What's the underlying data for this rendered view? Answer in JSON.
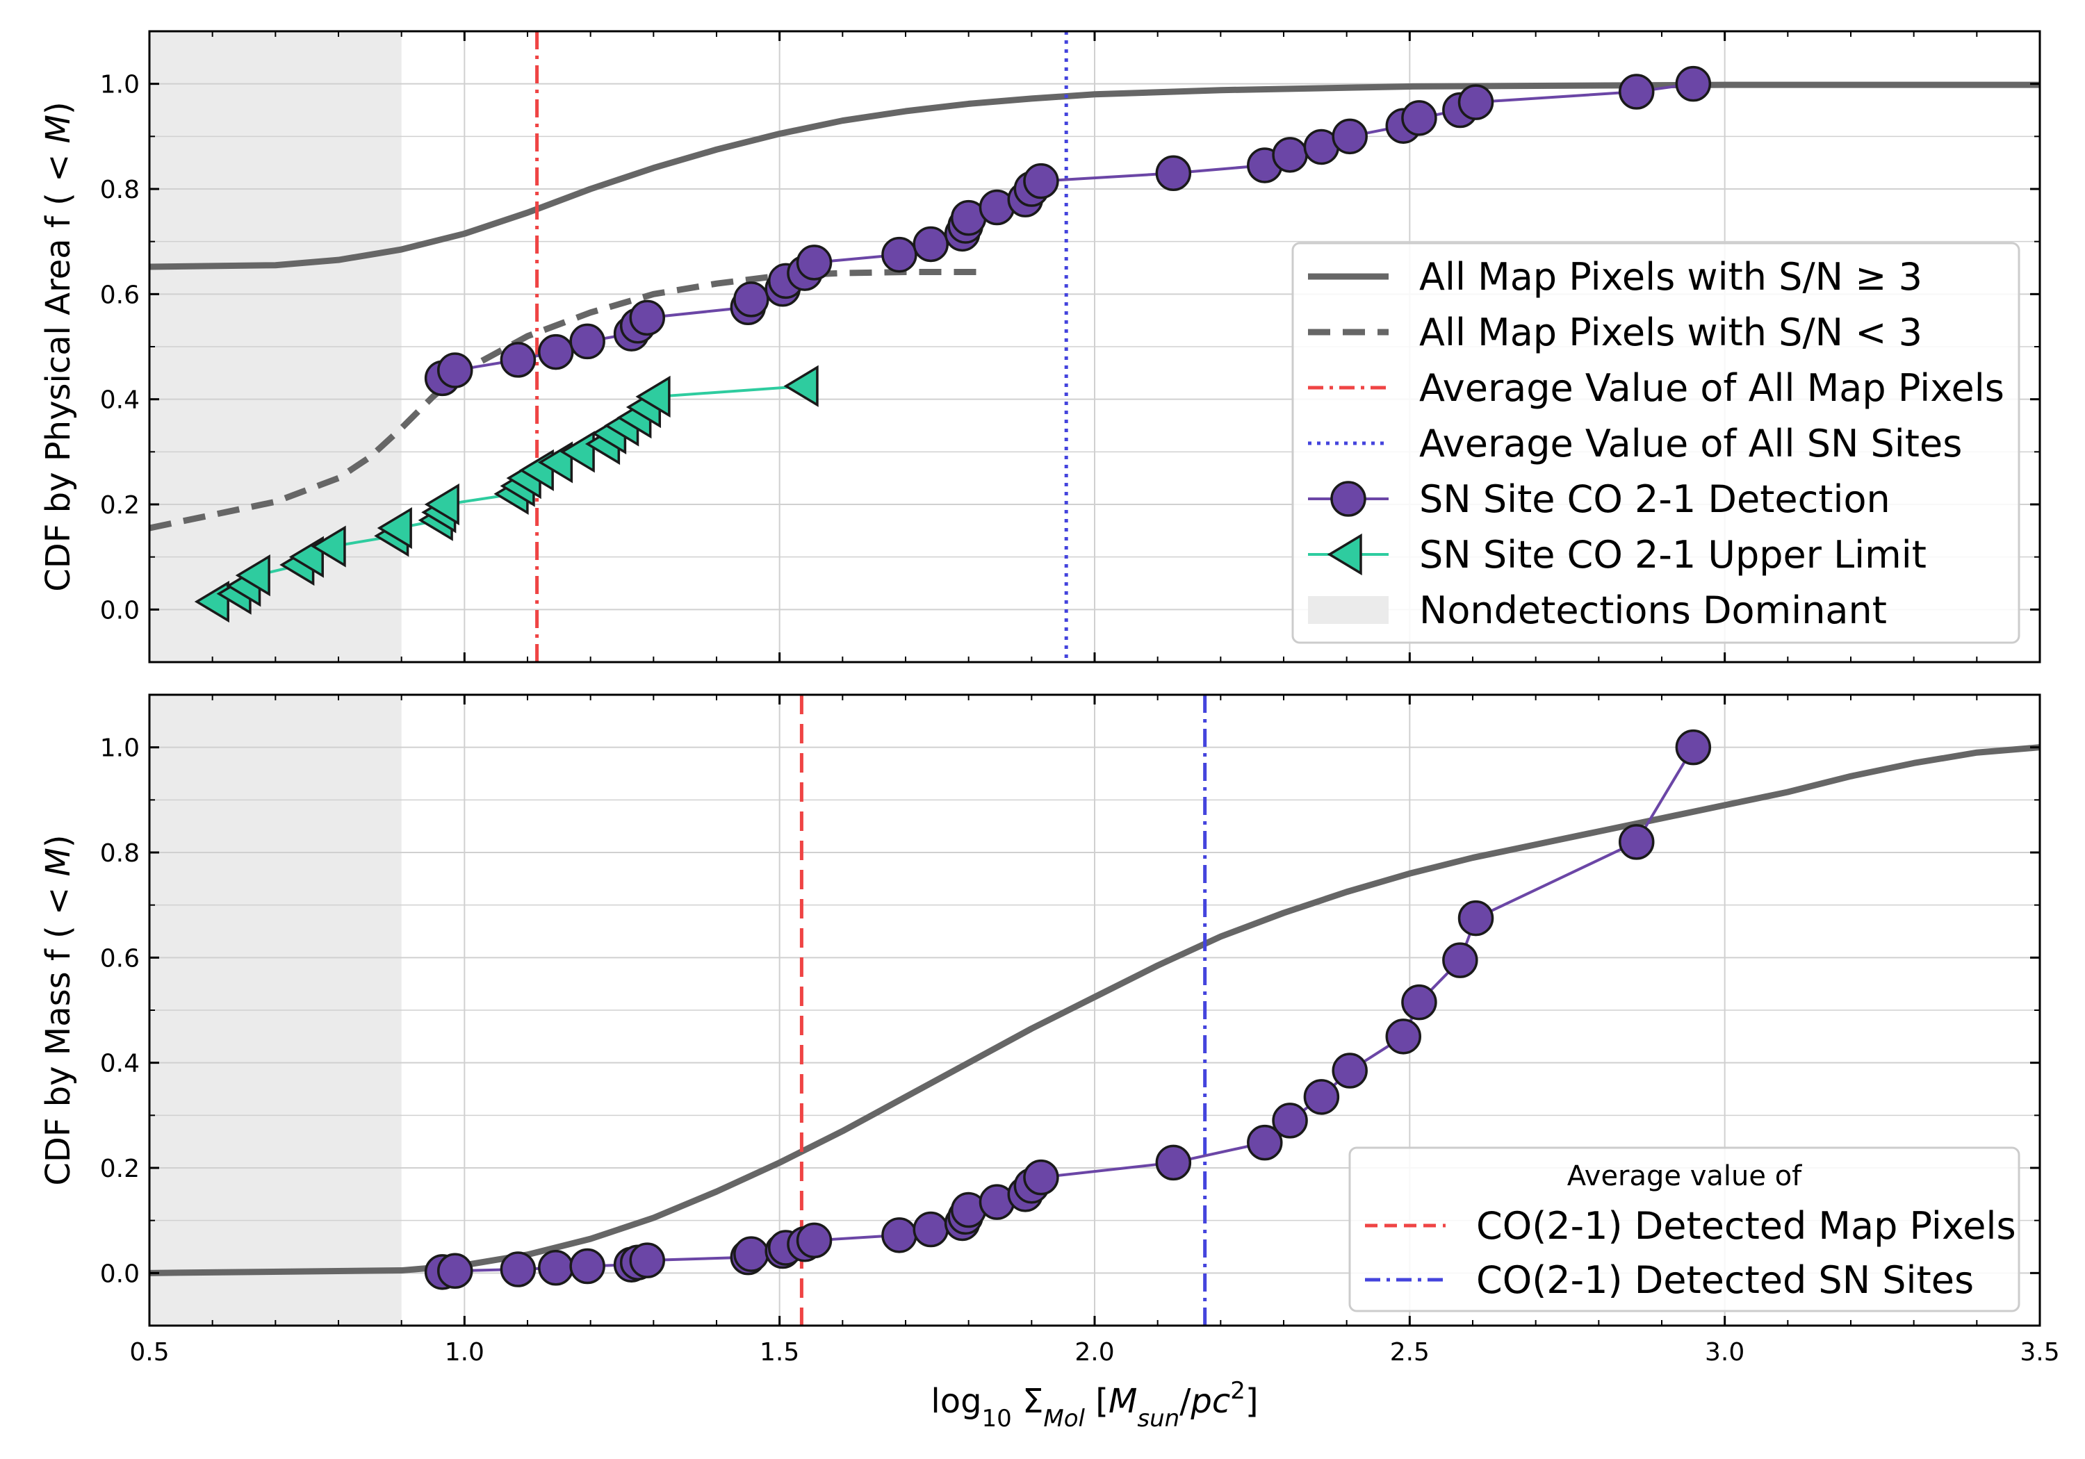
{
  "chart_data": [
    {
      "type": "line",
      "panel": "top",
      "ylabel": "CDF by Physical Area f ( < M)",
      "xlim": [
        0.5,
        3.5
      ],
      "ylim": [
        -0.1,
        1.1
      ],
      "x_ticks": [
        "0.5",
        "1.0",
        "1.5",
        "2.0",
        "2.5",
        "3.0",
        "3.5"
      ],
      "x_tick_values": [
        0.5,
        1.0,
        1.5,
        2.0,
        2.5,
        3.0,
        3.5
      ],
      "y_ticks": [
        "0.0",
        "0.2",
        "0.4",
        "0.6",
        "0.8",
        "1.0"
      ],
      "y_tick_values": [
        0.0,
        0.2,
        0.4,
        0.6,
        0.8,
        1.0
      ],
      "grid": true,
      "legend_position": "right",
      "shaded_region": {
        "label": "Nondetections Dominant",
        "x_range": [
          0.5,
          0.9
        ],
        "color": "#ebebeb"
      },
      "series": [
        {
          "name": "All Map Pixels with S/N ≥ 3",
          "style": "solid",
          "color": "#666666",
          "x": [
            0.5,
            0.7,
            0.8,
            0.9,
            1.0,
            1.1,
            1.2,
            1.3,
            1.4,
            1.5,
            1.6,
            1.7,
            1.8,
            1.9,
            2.0,
            2.2,
            2.5,
            3.0,
            3.5
          ],
          "y": [
            0.652,
            0.655,
            0.665,
            0.685,
            0.715,
            0.755,
            0.8,
            0.84,
            0.875,
            0.905,
            0.93,
            0.948,
            0.962,
            0.972,
            0.98,
            0.988,
            0.995,
            0.998,
            0.998
          ]
        },
        {
          "name": "All Map Pixels with S/N < 3",
          "style": "dashed",
          "color": "#666666",
          "x": [
            0.5,
            0.6,
            0.7,
            0.8,
            0.85,
            0.9,
            0.95,
            1.0,
            1.1,
            1.2,
            1.3,
            1.4,
            1.5,
            1.6,
            1.7,
            1.82
          ],
          "y": [
            0.155,
            0.18,
            0.205,
            0.25,
            0.29,
            0.345,
            0.405,
            0.455,
            0.52,
            0.565,
            0.6,
            0.62,
            0.635,
            0.64,
            0.642,
            0.642
          ]
        },
        {
          "name": "Average Value of All Map Pixels",
          "style": "dashdot",
          "color": "#ef4444",
          "vline": 1.115
        },
        {
          "name": "Average Value of All SN Sites",
          "style": "dotted",
          "color": "#4444dd",
          "vline": 1.955
        },
        {
          "name": "SN Site CO 2-1 Detection",
          "marker": "circle",
          "color": "#6b46a6",
          "x": [
            0.965,
            0.985,
            1.085,
            1.145,
            1.195,
            1.265,
            1.275,
            1.29,
            1.45,
            1.455,
            1.505,
            1.51,
            1.54,
            1.555,
            1.69,
            1.74,
            1.79,
            1.795,
            1.8,
            1.845,
            1.89,
            1.9,
            1.915,
            2.125,
            2.27,
            2.31,
            2.36,
            2.405,
            2.49,
            2.515,
            2.58,
            2.605,
            2.86,
            2.95
          ],
          "y": [
            0.44,
            0.455,
            0.475,
            0.49,
            0.51,
            0.525,
            0.54,
            0.555,
            0.575,
            0.59,
            0.61,
            0.625,
            0.64,
            0.66,
            0.675,
            0.695,
            0.715,
            0.73,
            0.745,
            0.765,
            0.78,
            0.8,
            0.815,
            0.83,
            0.845,
            0.865,
            0.88,
            0.9,
            0.92,
            0.935,
            0.95,
            0.965,
            0.985,
            1.0
          ]
        },
        {
          "name": "SN Site CO 2-1 Upper Limit",
          "marker": "triangle-left",
          "color": "#2ecc9f",
          "x": [
            0.605,
            0.64,
            0.655,
            0.67,
            0.74,
            0.755,
            0.79,
            0.89,
            0.895,
            0.96,
            0.965,
            0.97,
            1.08,
            1.09,
            1.1,
            1.12,
            1.15,
            1.185,
            1.225,
            1.235,
            1.255,
            1.275,
            1.29,
            1.305,
            1.54
          ],
          "y": [
            0.015,
            0.03,
            0.045,
            0.065,
            0.085,
            0.1,
            0.12,
            0.14,
            0.155,
            0.17,
            0.185,
            0.2,
            0.22,
            0.235,
            0.25,
            0.265,
            0.28,
            0.3,
            0.315,
            0.335,
            0.35,
            0.365,
            0.385,
            0.405,
            0.425
          ]
        }
      ]
    },
    {
      "type": "line",
      "panel": "bottom",
      "xlabel": "log10 ΣMol [Msun/pc2]",
      "ylabel": "CDF by Mass f ( < M)",
      "xlim": [
        0.5,
        3.5
      ],
      "ylim": [
        -0.1,
        1.1
      ],
      "x_ticks": [
        "0.5",
        "1.0",
        "1.5",
        "2.0",
        "2.5",
        "3.0",
        "3.5"
      ],
      "x_tick_values": [
        0.5,
        1.0,
        1.5,
        2.0,
        2.5,
        3.0,
        3.5
      ],
      "y_ticks": [
        "0.0",
        "0.2",
        "0.4",
        "0.6",
        "0.8",
        "1.0"
      ],
      "y_tick_values": [
        0.0,
        0.2,
        0.4,
        0.6,
        0.8,
        1.0
      ],
      "grid": true,
      "legend_position": "bottom-right",
      "legend_title": "Average value of",
      "shaded_region": {
        "x_range": [
          0.5,
          0.9
        ],
        "color": "#ebebeb"
      },
      "series": [
        {
          "style": "solid",
          "color": "#666666",
          "x": [
            0.5,
            0.9,
            1.0,
            1.1,
            1.2,
            1.3,
            1.4,
            1.5,
            1.6,
            1.7,
            1.8,
            1.9,
            2.0,
            2.1,
            2.2,
            2.3,
            2.4,
            2.5,
            2.6,
            2.7,
            2.8,
            2.9,
            3.0,
            3.1,
            3.2,
            3.3,
            3.4,
            3.5
          ],
          "y": [
            0.0,
            0.005,
            0.015,
            0.035,
            0.065,
            0.105,
            0.155,
            0.21,
            0.27,
            0.335,
            0.4,
            0.465,
            0.525,
            0.585,
            0.64,
            0.685,
            0.725,
            0.76,
            0.79,
            0.815,
            0.84,
            0.865,
            0.89,
            0.915,
            0.945,
            0.97,
            0.99,
            1.0
          ]
        },
        {
          "name": "CO(2-1) Detected Map Pixels",
          "style": "dashed",
          "color": "#ef4444",
          "vline": 1.535
        },
        {
          "name": "CO(2-1) Detected SN Sites",
          "style": "dashdot",
          "color": "#4444dd",
          "vline": 2.175
        },
        {
          "marker": "circle",
          "color": "#6b46a6",
          "x": [
            0.965,
            0.985,
            1.085,
            1.145,
            1.195,
            1.265,
            1.275,
            1.29,
            1.45,
            1.455,
            1.505,
            1.51,
            1.54,
            1.555,
            1.69,
            1.74,
            1.79,
            1.795,
            1.8,
            1.845,
            1.89,
            1.9,
            1.915,
            2.125,
            2.27,
            2.31,
            2.36,
            2.405,
            2.49,
            2.515,
            2.58,
            2.605,
            2.86,
            2.95
          ],
          "y": [
            0.002,
            0.004,
            0.007,
            0.01,
            0.013,
            0.016,
            0.02,
            0.024,
            0.03,
            0.036,
            0.042,
            0.048,
            0.055,
            0.062,
            0.072,
            0.083,
            0.095,
            0.107,
            0.12,
            0.135,
            0.15,
            0.166,
            0.182,
            0.21,
            0.248,
            0.29,
            0.335,
            0.385,
            0.45,
            0.515,
            0.595,
            0.675,
            0.82,
            1.0
          ]
        }
      ]
    }
  ]
}
